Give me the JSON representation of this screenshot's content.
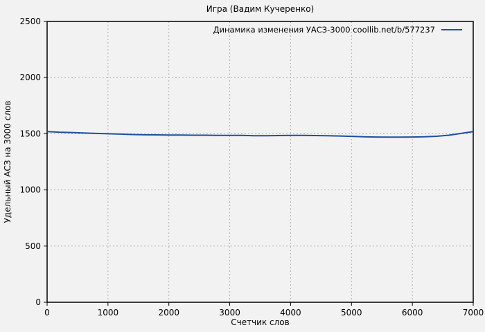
{
  "chart_data": {
    "type": "line",
    "title": "Игра (Вадим Кучеренко)",
    "xlabel": "Счетчик слов",
    "ylabel": "Удельный АСЗ на 3000 слов",
    "legend": "Динамика изменения УАСЗ-3000 coollib.net/b/577237",
    "legend_position": "top-right",
    "grid": true,
    "xlim": [
      0,
      7000
    ],
    "ylim": [
      0,
      2500
    ],
    "xticks": [
      0,
      1000,
      2000,
      3000,
      4000,
      5000,
      6000,
      7000
    ],
    "yticks": [
      0,
      500,
      1000,
      1500,
      2000,
      2500
    ],
    "x": [
      0,
      200,
      400,
      600,
      800,
      1000,
      1200,
      1400,
      1600,
      1800,
      2000,
      2200,
      2400,
      2600,
      2800,
      3000,
      3200,
      3400,
      3600,
      3800,
      4000,
      4200,
      4400,
      4600,
      4800,
      5000,
      5200,
      5400,
      5600,
      5800,
      6000,
      6200,
      6400,
      6600,
      6800,
      7000
    ],
    "values": [
      1520,
      1514,
      1511,
      1507,
      1503,
      1500,
      1497,
      1493,
      1491,
      1490,
      1489,
      1488,
      1487,
      1487,
      1486,
      1486,
      1485,
      1483,
      1482,
      1484,
      1486,
      1485,
      1484,
      1482,
      1480,
      1477,
      1473,
      1471,
      1470,
      1470,
      1471,
      1473,
      1478,
      1487,
      1503,
      1519
    ],
    "colors": {
      "line": "#1c4f9e",
      "grid": "#b0b0b0",
      "border": "#000000",
      "background": "#f2f2f2",
      "text": "#000000"
    }
  }
}
